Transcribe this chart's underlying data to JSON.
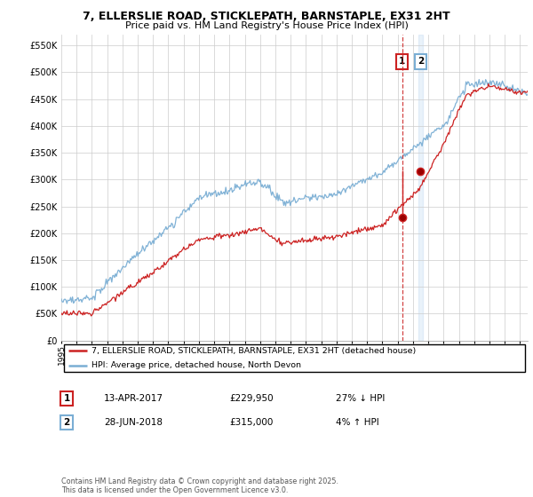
{
  "title": "7, ELLERSLIE ROAD, STICKLEPATH, BARNSTAPLE, EX31 2HT",
  "subtitle": "Price paid vs. HM Land Registry's House Price Index (HPI)",
  "ylim": [
    0,
    570000
  ],
  "yticks": [
    0,
    50000,
    100000,
    150000,
    200000,
    250000,
    300000,
    350000,
    400000,
    450000,
    500000,
    550000
  ],
  "hpi_color": "#7aaed4",
  "price_color": "#cc2222",
  "vline1_color": "#cc2222",
  "vline2_color": "#aaccee",
  "legend_label_price": "7, ELLERSLIE ROAD, STICKLEPATH, BARNSTAPLE, EX31 2HT (detached house)",
  "legend_label_hpi": "HPI: Average price, detached house, North Devon",
  "annotation1_num": "1",
  "annotation1_date": "13-APR-2017",
  "annotation1_price": "£229,950",
  "annotation1_hpi": "27% ↓ HPI",
  "annotation2_num": "2",
  "annotation2_date": "28-JUN-2018",
  "annotation2_price": "£315,000",
  "annotation2_hpi": "4% ↑ HPI",
  "footer": "Contains HM Land Registry data © Crown copyright and database right 2025.\nThis data is licensed under the Open Government Licence v3.0.",
  "sale1_year": 2017.28,
  "sale1_value": 229950,
  "sale2_year": 2018.49,
  "sale2_value": 315000,
  "background_color": "#ffffff",
  "grid_color": "#cccccc"
}
